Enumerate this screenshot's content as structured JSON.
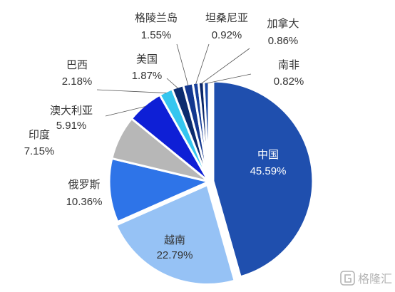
{
  "chart_data": {
    "type": "pie",
    "title": "",
    "slices": [
      {
        "label": "中国",
        "value": 45.59,
        "display": "45.59%",
        "color": "#1f4fae"
      },
      {
        "label": "越南",
        "value": 22.79,
        "display": "22.79%",
        "color": "#96c2f5"
      },
      {
        "label": "俄罗斯",
        "value": 10.36,
        "display": "10.36%",
        "color": "#2e74e8"
      },
      {
        "label": "印度",
        "value": 7.15,
        "display": "7.15%",
        "color": "#b7b7b7"
      },
      {
        "label": "澳大利亚",
        "value": 5.91,
        "display": "5.91%",
        "color": "#0e1fd6"
      },
      {
        "label": "巴西",
        "value": 2.18,
        "display": "2.18%",
        "color": "#35c6ef"
      },
      {
        "label": "美国",
        "value": 1.87,
        "display": "1.87%",
        "color": "#0b2b6e"
      },
      {
        "label": "格陵兰岛",
        "value": 1.55,
        "display": "1.55%",
        "color": "#13378f"
      },
      {
        "label": "坦桑尼亚",
        "value": 0.92,
        "display": "0.92%",
        "color": "#173f9b"
      },
      {
        "label": "加拿大",
        "value": 0.86,
        "display": "0.86%",
        "color": "#0a2668"
      },
      {
        "label": "南非",
        "value": 0.82,
        "display": "0.82%",
        "color": "#1a48a6"
      }
    ],
    "legend": "none"
  },
  "watermark": {
    "text": "格隆汇",
    "icon": "g-logo-icon"
  }
}
